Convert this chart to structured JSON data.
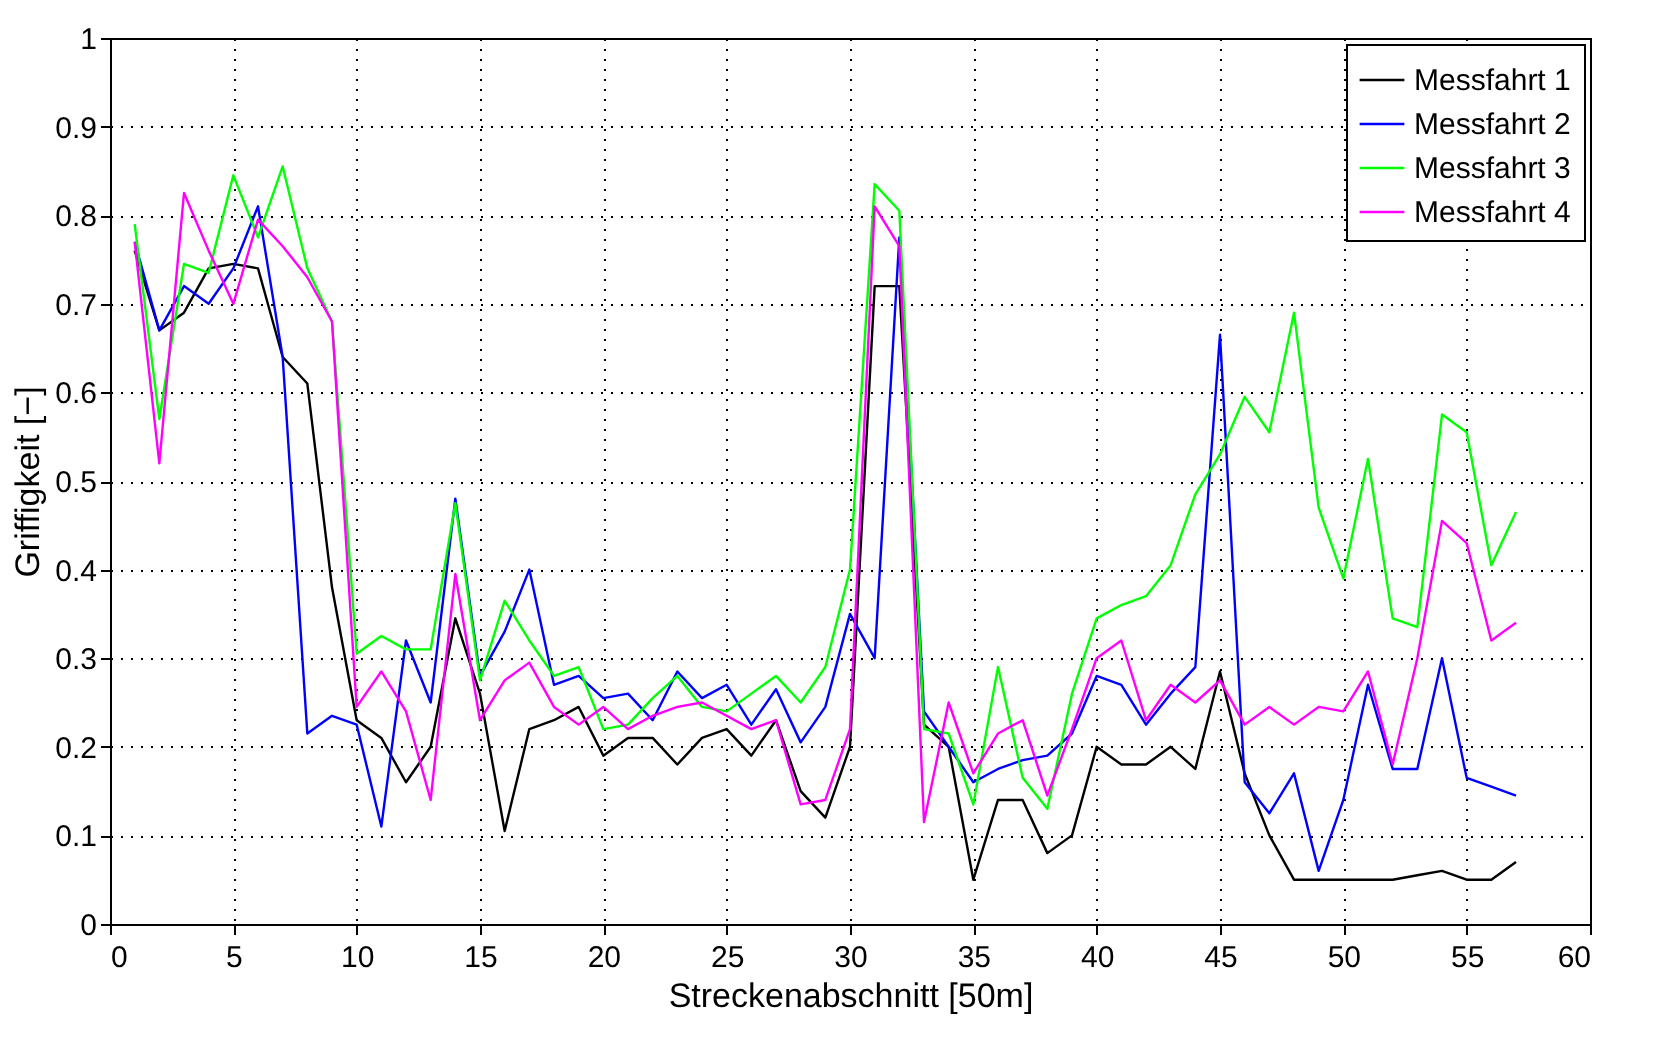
{
  "chart_data": {
    "type": "line",
    "xlabel": "Streckenabschnitt [50m]",
    "ylabel": "Griffigkeit [−]",
    "x": [
      1,
      2,
      3,
      4,
      5,
      6,
      7,
      8,
      9,
      10,
      11,
      12,
      13,
      14,
      15,
      16,
      17,
      18,
      19,
      20,
      21,
      22,
      23,
      24,
      25,
      26,
      27,
      28,
      29,
      30,
      31,
      32,
      33,
      34,
      35,
      36,
      37,
      38,
      39,
      40,
      41,
      42,
      43,
      44,
      45,
      46,
      47,
      48,
      49,
      50,
      51,
      52,
      53,
      54,
      55,
      56,
      57
    ],
    "series": [
      {
        "name": "Messfahrt 1",
        "color": "#000000",
        "values": [
          0.76,
          0.67,
          0.69,
          0.74,
          0.745,
          0.74,
          0.64,
          0.61,
          0.38,
          0.23,
          0.21,
          0.16,
          0.2,
          0.345,
          0.26,
          0.105,
          0.22,
          0.23,
          0.245,
          0.19,
          0.21,
          0.21,
          0.18,
          0.21,
          0.22,
          0.19,
          0.23,
          0.15,
          0.12,
          0.2,
          0.72,
          0.72,
          0.225,
          0.2,
          0.05,
          0.14,
          0.14,
          0.08,
          0.1,
          0.2,
          0.18,
          0.18,
          0.2,
          0.175,
          0.285,
          0.17,
          0.1,
          0.05,
          0.05,
          0.05,
          0.05,
          0.05,
          0.055,
          0.06,
          0.05,
          0.05,
          0.07
        ]
      },
      {
        "name": "Messfahrt 2",
        "color": "#0000ff",
        "values": [
          0.77,
          0.67,
          0.72,
          0.7,
          0.74,
          0.81,
          0.64,
          0.215,
          0.235,
          0.225,
          0.11,
          0.32,
          0.25,
          0.48,
          0.28,
          0.33,
          0.4,
          0.27,
          0.28,
          0.255,
          0.26,
          0.23,
          0.285,
          0.255,
          0.27,
          0.225,
          0.265,
          0.205,
          0.245,
          0.35,
          0.3,
          0.775,
          0.24,
          0.2,
          0.16,
          0.175,
          0.185,
          0.19,
          0.215,
          0.28,
          0.27,
          0.225,
          0.26,
          0.29,
          0.665,
          0.16,
          0.125,
          0.17,
          0.06,
          0.14,
          0.27,
          0.175,
          0.175,
          0.3,
          0.165,
          0.155,
          0.145
        ]
      },
      {
        "name": "Messfahrt 3",
        "color": "#00ff00",
        "values": [
          0.79,
          0.57,
          0.745,
          0.735,
          0.845,
          0.775,
          0.855,
          0.74,
          0.68,
          0.305,
          0.325,
          0.31,
          0.31,
          0.475,
          0.275,
          0.365,
          0.32,
          0.28,
          0.29,
          0.22,
          0.225,
          0.255,
          0.28,
          0.245,
          0.24,
          0.26,
          0.28,
          0.25,
          0.29,
          0.4,
          0.835,
          0.805,
          0.22,
          0.215,
          0.135,
          0.29,
          0.165,
          0.13,
          0.26,
          0.345,
          0.36,
          0.37,
          0.405,
          0.485,
          0.53,
          0.595,
          0.555,
          0.69,
          0.47,
          0.39,
          0.525,
          0.345,
          0.335,
          0.575,
          0.555,
          0.405,
          0.465
        ]
      },
      {
        "name": "Messfahrt 4",
        "color": "#ff00ff",
        "values": [
          0.77,
          0.52,
          0.825,
          0.76,
          0.7,
          0.795,
          0.765,
          0.73,
          0.68,
          0.245,
          0.285,
          0.24,
          0.14,
          0.395,
          0.23,
          0.275,
          0.295,
          0.245,
          0.225,
          0.245,
          0.22,
          0.235,
          0.245,
          0.25,
          0.235,
          0.22,
          0.23,
          0.135,
          0.14,
          0.22,
          0.81,
          0.765,
          0.115,
          0.25,
          0.17,
          0.215,
          0.23,
          0.145,
          0.22,
          0.3,
          0.32,
          0.23,
          0.27,
          0.25,
          0.275,
          0.225,
          0.245,
          0.225,
          0.245,
          0.24,
          0.285,
          0.18,
          0.3,
          0.455,
          0.43,
          0.32,
          0.34
        ]
      }
    ],
    "xlim": [
      0,
      60
    ],
    "xticks": [
      0,
      5,
      10,
      15,
      20,
      25,
      30,
      35,
      40,
      45,
      50,
      55,
      60
    ],
    "ylim": [
      0,
      1
    ],
    "yticks": [
      0,
      0.1,
      0.2,
      0.3,
      0.4,
      0.5,
      0.6,
      0.7,
      0.8,
      0.9,
      1
    ],
    "grid": true,
    "legend": "top right",
    "line_style": "solid",
    "marker": "none"
  }
}
